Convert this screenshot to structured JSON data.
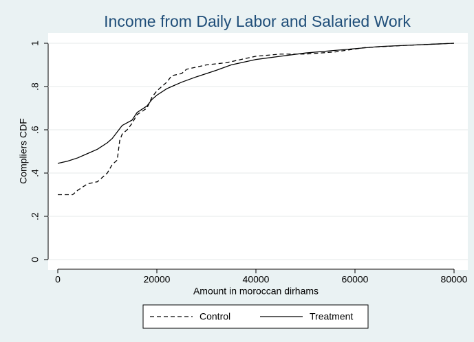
{
  "chart_data": {
    "type": "line",
    "title": "Income from Daily Labor and Salaried Work",
    "x_label": "Amount in moroccan dirhams",
    "y_label": "Compliers CDF",
    "xlim": [
      0,
      80000
    ],
    "xticks": [
      0,
      20000,
      40000,
      60000,
      80000
    ],
    "ylim": [
      0,
      1
    ],
    "yticks": [
      0,
      {
        "value": 0.2,
        "label": ".2"
      },
      {
        "value": 0.4,
        "label": ".4"
      },
      {
        "value": 0.6,
        "label": ".6"
      },
      {
        "value": 0.8,
        "label": ".8"
      },
      1
    ],
    "grid": true,
    "legend": "bottom",
    "series": [
      {
        "name": "Control",
        "color": "#000000",
        "dash": "dashed",
        "x": [
          0,
          3000,
          4000,
          6000,
          8000,
          9000,
          10000,
          11000,
          12000,
          12500,
          13000,
          14000,
          15000,
          16000,
          18000,
          19000,
          20000,
          22000,
          23000,
          25000,
          26000,
          30000,
          34000,
          38000,
          40000,
          45000,
          50000,
          56000,
          62000,
          70000,
          80000
        ],
        "values": [
          0.3,
          0.3,
          0.32,
          0.35,
          0.36,
          0.38,
          0.4,
          0.44,
          0.46,
          0.55,
          0.58,
          0.6,
          0.63,
          0.67,
          0.7,
          0.75,
          0.78,
          0.82,
          0.85,
          0.86,
          0.88,
          0.9,
          0.91,
          0.93,
          0.94,
          0.95,
          0.95,
          0.96,
          0.98,
          0.99,
          1.0
        ]
      },
      {
        "name": "Treatment",
        "color": "#000000",
        "dash": "solid",
        "x": [
          0,
          2000,
          4000,
          6000,
          8000,
          10000,
          11000,
          12000,
          13000,
          15000,
          16000,
          18000,
          19000,
          20000,
          22000,
          25000,
          28000,
          32000,
          35000,
          40000,
          45000,
          50000,
          55000,
          60000,
          65000,
          70000,
          80000
        ],
        "values": [
          0.445,
          0.455,
          0.47,
          0.49,
          0.51,
          0.54,
          0.56,
          0.59,
          0.62,
          0.645,
          0.68,
          0.71,
          0.74,
          0.76,
          0.79,
          0.82,
          0.845,
          0.875,
          0.9,
          0.925,
          0.94,
          0.955,
          0.965,
          0.975,
          0.985,
          0.99,
          1.0
        ]
      }
    ]
  }
}
